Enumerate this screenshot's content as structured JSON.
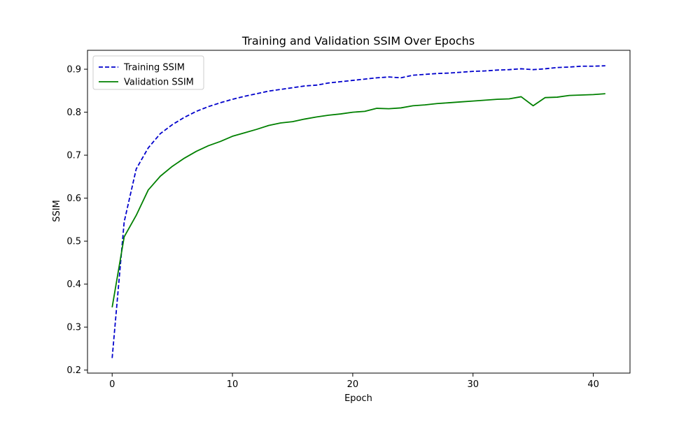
{
  "chart_data": {
    "type": "line",
    "title": "Training and Validation SSIM Over Epochs",
    "xlabel": "Epoch",
    "ylabel": "SSIM",
    "xlim": [
      -2.05,
      43.05
    ],
    "ylim": [
      0.193,
      0.944
    ],
    "xticks": [
      0,
      10,
      20,
      30,
      40
    ],
    "yticks": [
      0.2,
      0.3,
      0.4,
      0.5,
      0.6,
      0.7,
      0.8,
      0.9
    ],
    "grid": false,
    "legend_position": "top-left",
    "x": [
      0,
      1,
      2,
      3,
      4,
      5,
      6,
      7,
      8,
      9,
      10,
      11,
      12,
      13,
      14,
      15,
      16,
      17,
      18,
      19,
      20,
      21,
      22,
      23,
      24,
      25,
      26,
      27,
      28,
      29,
      30,
      31,
      32,
      33,
      34,
      35,
      36,
      37,
      38,
      39,
      40,
      41
    ],
    "series": [
      {
        "name": "Training SSIM",
        "color": "#0000cc",
        "style": "dashed",
        "values": [
          0.228,
          0.545,
          0.668,
          0.717,
          0.75,
          0.771,
          0.788,
          0.802,
          0.813,
          0.822,
          0.83,
          0.837,
          0.843,
          0.849,
          0.853,
          0.857,
          0.861,
          0.863,
          0.868,
          0.871,
          0.874,
          0.877,
          0.88,
          0.882,
          0.88,
          0.886,
          0.888,
          0.89,
          0.891,
          0.893,
          0.895,
          0.896,
          0.898,
          0.899,
          0.901,
          0.899,
          0.901,
          0.904,
          0.905,
          0.907,
          0.907,
          0.908
        ]
      },
      {
        "name": "Validation SSIM",
        "color": "#008000",
        "style": "solid",
        "values": [
          0.346,
          0.51,
          0.56,
          0.619,
          0.651,
          0.674,
          0.693,
          0.709,
          0.722,
          0.732,
          0.744,
          0.752,
          0.76,
          0.769,
          0.775,
          0.778,
          0.784,
          0.789,
          0.793,
          0.796,
          0.8,
          0.802,
          0.809,
          0.808,
          0.81,
          0.815,
          0.817,
          0.82,
          0.822,
          0.824,
          0.826,
          0.828,
          0.83,
          0.831,
          0.836,
          0.815,
          0.834,
          0.835,
          0.839,
          0.84,
          0.841,
          0.843
        ]
      }
    ]
  }
}
